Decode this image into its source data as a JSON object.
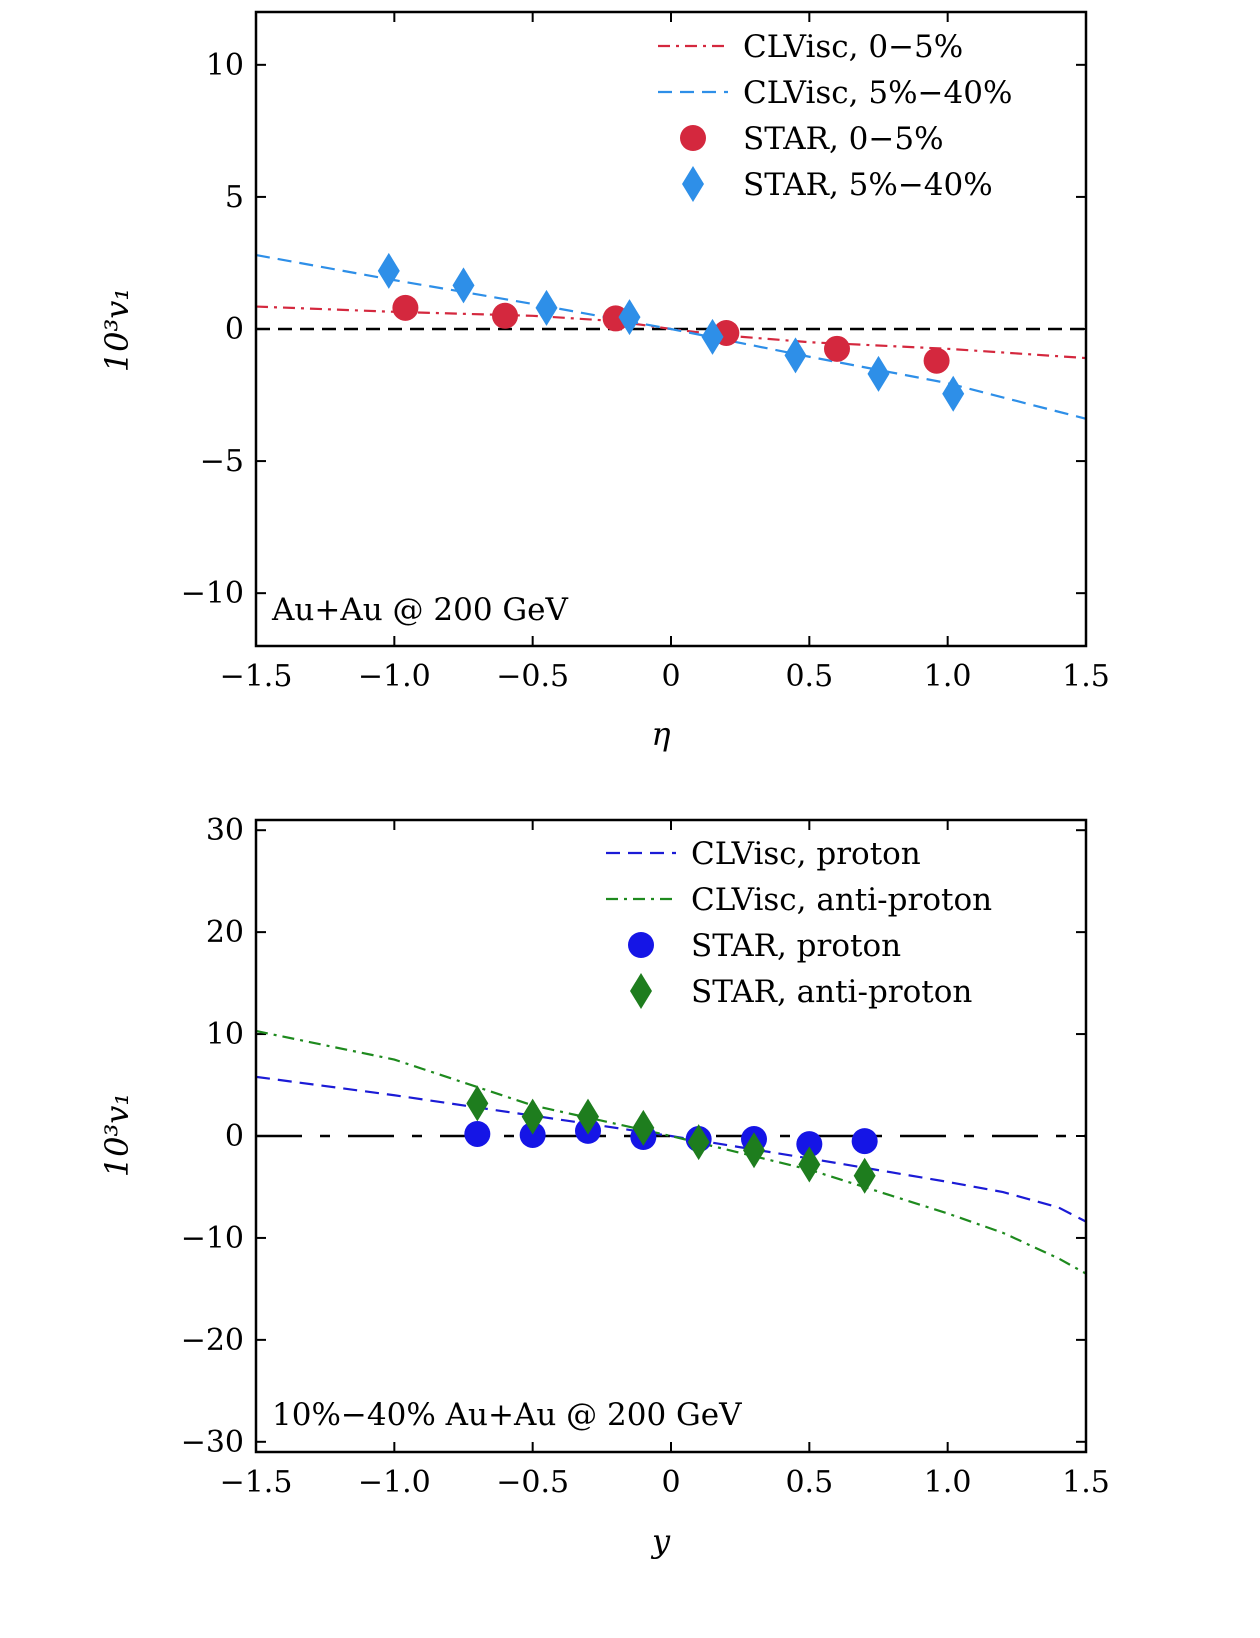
{
  "chart_data": [
    {
      "type": "line",
      "xlabel": "η",
      "ylabel": "10³v₁",
      "xlim": [
        -1.5,
        1.5
      ],
      "ylim": [
        -12,
        12
      ],
      "xticks": [
        -1.5,
        -1.0,
        -0.5,
        0,
        0.5,
        1.0,
        1.5
      ],
      "xtick_labels": [
        "−1.5",
        "−1.0",
        "−0.5",
        "0",
        "0.5",
        "1.0",
        "1.5"
      ],
      "yticks": [
        -10,
        -5,
        0,
        5,
        10
      ],
      "ytick_labels": [
        "−10",
        "−5",
        "0",
        "5",
        "10"
      ],
      "annotation": "Au+Au @ 200 GeV",
      "legend_position": "top-right",
      "zero_line": {
        "style": "dashed",
        "color": "#000000"
      },
      "series": [
        {
          "name": "CLVisc, 0−5%",
          "kind": "line",
          "style": "dash-dot",
          "color": "#d4283e",
          "x": [
            -1.5,
            -1.0,
            -0.5,
            -0.2,
            0,
            0.2,
            0.5,
            1.0,
            1.5
          ],
          "y": [
            0.85,
            0.65,
            0.5,
            0.3,
            0,
            -0.25,
            -0.5,
            -0.75,
            -1.1
          ]
        },
        {
          "name": "CLVisc, 5%−40%",
          "kind": "line",
          "style": "dashed",
          "color": "#2e8fe8",
          "x": [
            -1.5,
            -1.0,
            -0.5,
            0,
            0.5,
            1.0,
            1.5
          ],
          "y": [
            2.8,
            1.85,
            0.95,
            0,
            -1.05,
            -2.05,
            -3.4
          ]
        },
        {
          "name": "STAR, 0−5%",
          "kind": "scatter",
          "marker": "circle",
          "color": "#d4283e",
          "x": [
            -0.96,
            -0.6,
            -0.2,
            0.2,
            0.6,
            0.96
          ],
          "y": [
            0.8,
            0.5,
            0.4,
            -0.15,
            -0.75,
            -1.2
          ]
        },
        {
          "name": "STAR, 5%−40%",
          "kind": "scatter",
          "marker": "diamond",
          "color": "#2e8fe8",
          "x": [
            -1.02,
            -0.75,
            -0.45,
            -0.15,
            0.15,
            0.45,
            0.75,
            1.02
          ],
          "y": [
            2.2,
            1.65,
            0.8,
            0.45,
            -0.3,
            -1.0,
            -1.7,
            -2.45
          ]
        }
      ]
    },
    {
      "type": "line",
      "xlabel": "y",
      "ylabel": "10³v₁",
      "xlim": [
        -1.5,
        1.5
      ],
      "ylim": [
        -31,
        31
      ],
      "xticks": [
        -1.5,
        -1.0,
        -0.5,
        0,
        0.5,
        1.0,
        1.5
      ],
      "xtick_labels": [
        "−1.5",
        "−1.0",
        "−0.5",
        "0",
        "0.5",
        "1.0",
        "1.5"
      ],
      "yticks": [
        -30,
        -20,
        -10,
        0,
        10,
        20,
        30
      ],
      "ytick_labels": [
        "−30",
        "−20",
        "−10",
        "0",
        "10",
        "20",
        "30"
      ],
      "annotation": "10%−40% Au+Au @ 200 GeV",
      "legend_position": "top-right",
      "zero_line": {
        "style": "long-dash-dot",
        "color": "#000000"
      },
      "series": [
        {
          "name": "CLVisc, proton",
          "kind": "line",
          "style": "dashed",
          "color": "#1b1bd6",
          "x": [
            -1.5,
            -1.0,
            -0.5,
            0,
            0.5,
            1.0,
            1.2,
            1.4,
            1.5
          ],
          "y": [
            5.8,
            4.0,
            2.0,
            0,
            -2.2,
            -4.5,
            -5.5,
            -7.0,
            -8.4
          ]
        },
        {
          "name": "CLVisc, anti-proton",
          "kind": "line",
          "style": "dash-dot",
          "color": "#1e8a1e",
          "x": [
            -1.5,
            -1.0,
            -0.5,
            0,
            0.5,
            1.0,
            1.2,
            1.4,
            1.5
          ],
          "y": [
            10.3,
            7.5,
            3.0,
            0,
            -3.3,
            -7.6,
            -9.5,
            -12.0,
            -13.5
          ]
        },
        {
          "name": "STAR, proton",
          "kind": "scatter",
          "marker": "circle",
          "color": "#1515e6",
          "x": [
            -0.7,
            -0.5,
            -0.3,
            -0.1,
            0.1,
            0.3,
            0.5,
            0.7
          ],
          "y": [
            0.2,
            0.1,
            0.5,
            -0.1,
            -0.3,
            -0.3,
            -0.8,
            -0.5
          ]
        },
        {
          "name": "STAR, anti-proton",
          "kind": "scatter",
          "marker": "diamond",
          "color": "#1e7d1e",
          "x": [
            -0.7,
            -0.5,
            -0.3,
            -0.1,
            0.1,
            0.3,
            0.5,
            0.7
          ],
          "y": [
            3.2,
            1.9,
            1.9,
            0.8,
            -0.6,
            -1.4,
            -2.8,
            -3.9
          ]
        }
      ]
    }
  ]
}
